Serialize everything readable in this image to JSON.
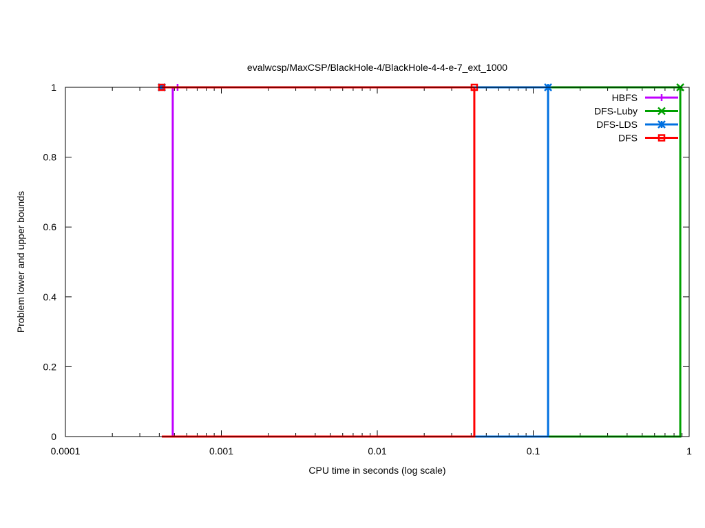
{
  "chart_data": {
    "type": "line",
    "title": "evalwcsp/MaxCSP/BlackHole-4/BlackHole-4-4-e-7_ext_1000",
    "xlabel": "CPU time in seconds (log scale)",
    "ylabel": "Problem lower and upper bounds",
    "xscale": "log",
    "xlim": [
      0.0001,
      1
    ],
    "ylim": [
      0,
      1
    ],
    "x_ticks": [
      "0.0001",
      "0.001",
      "0.01",
      "0.1",
      "1"
    ],
    "y_ticks": [
      "0",
      "0.2",
      "0.4",
      "0.6",
      "0.8",
      "1"
    ],
    "grid": false,
    "legend_position": "top-right",
    "series": [
      {
        "name": "HBFS",
        "color": "#c000ff",
        "marker": "plus",
        "start": 0.000415,
        "solved": 0.000488,
        "marker_x": 0.000524
      },
      {
        "name": "DFS-Luby",
        "color": "#00a000",
        "marker": "cross",
        "start": 0.000415,
        "solved": 0.877,
        "marker_x": 0.877
      },
      {
        "name": "DFS-LDS",
        "color": "#0070e0",
        "marker": "star",
        "start": 0.000415,
        "solved": 0.1245,
        "marker_x": 0.1245
      },
      {
        "name": "DFS",
        "color": "#ff0000",
        "marker": "box",
        "start": 0.000415,
        "solved": 0.0419,
        "marker_x": 0.0419
      }
    ]
  }
}
